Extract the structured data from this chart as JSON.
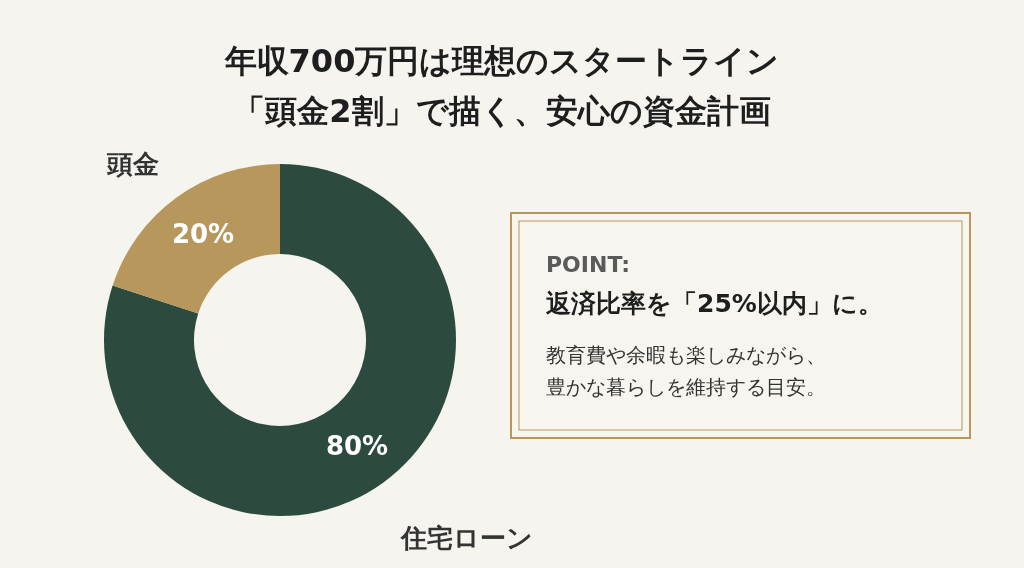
{
  "chart_data": {
    "type": "donut",
    "title": "年収700万円は理想のスタートライン",
    "subtitle": "「頭金2割」で描く、安心の資金計画",
    "categories": [
      "住宅ローン",
      "頭金"
    ],
    "values": [
      80,
      20
    ],
    "colors": [
      "#2c4a3d",
      "#b8975c"
    ],
    "value_labels": [
      "80%",
      "20%"
    ],
    "legend": false,
    "annotations": [
      "POINT:",
      "返済比率を「25%以内」に。",
      "教育費や余暇も楽しみながら、",
      "豊かな暮らしを維持する目安。"
    ]
  }
}
